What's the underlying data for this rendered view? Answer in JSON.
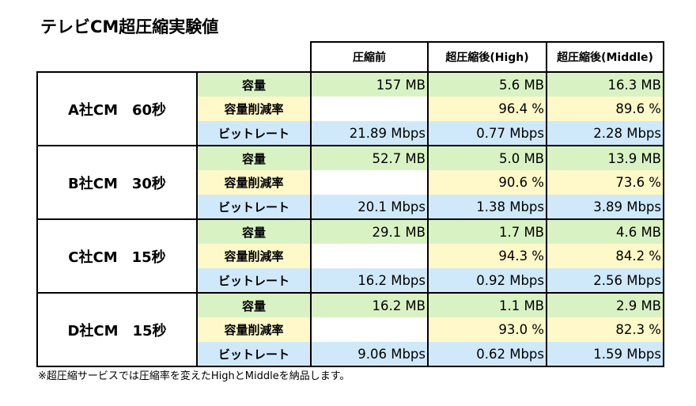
{
  "title": "テレビCM超圧縮実験値",
  "headers": [
    "圧縮前",
    "超圧縮後(High)",
    "超圧縮後(Middle)"
  ],
  "labels": {
    "size": "容量",
    "reduction": "容量削減率",
    "bitrate": "ビットレート"
  },
  "blocks": [
    {
      "name": "A社CM　60秒",
      "size": [
        "157 MB",
        "5.6 MB",
        "16.3 MB"
      ],
      "reduction": [
        "",
        "96.4 %",
        "89.6 %"
      ],
      "bitrate": [
        "21.89 Mbps",
        "0.77 Mbps",
        "2.28 Mbps"
      ]
    },
    {
      "name": "B社CM　30秒",
      "size": [
        "52.7 MB",
        "5.0 MB",
        "13.9 MB"
      ],
      "reduction": [
        "",
        "90.6 %",
        "73.6 %"
      ],
      "bitrate": [
        "20.1 Mbps",
        "1.38 Mbps",
        "3.89 Mbps"
      ]
    },
    {
      "name": "C社CM　15秒",
      "size": [
        "29.1 MB",
        "1.7 MB",
        "4.6 MB"
      ],
      "reduction": [
        "",
        "94.3 %",
        "84.2 %"
      ],
      "bitrate": [
        "16.2 Mbps",
        "0.92 Mbps",
        "2.56 Mbps"
      ]
    },
    {
      "name": "D社CM　15秒",
      "size": [
        "16.2 MB",
        "1.1 MB",
        "2.9 MB"
      ],
      "reduction": [
        "",
        "93.0 %",
        "82.3 %"
      ],
      "bitrate": [
        "9.06 Mbps",
        "0.62 Mbps",
        "1.59 Mbps"
      ]
    }
  ],
  "footnote": "※超圧縮サービスでは圧縮率を変えたHighとMiddleを納品します。",
  "colors": {
    "size_row": "#d9f2c4",
    "reduction_row": "#fff8c8",
    "bitrate_row": "#cfe9fb"
  }
}
